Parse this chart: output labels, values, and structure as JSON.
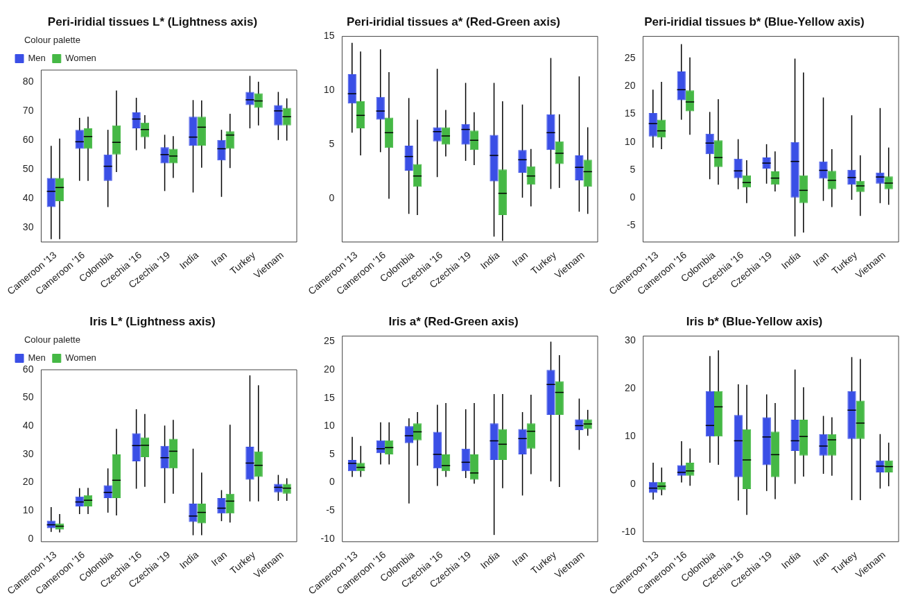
{
  "chart_data": [
    {
      "type": "box",
      "title": "Peri-iridial tissues L* (Lightness axis)",
      "categories": [
        "Cameroon '13",
        "Cameroon '16",
        "Colombia",
        "Czechia '16",
        "Czechia '19",
        "India",
        "Iran",
        "Turkey",
        "Vietnam"
      ],
      "ylim": [
        25,
        84
      ],
      "yticks": [
        30,
        40,
        50,
        60,
        70,
        80
      ],
      "grid": false,
      "legend": "top left",
      "legend_title": "Colour palette",
      "series": [
        {
          "name": "Men",
          "color": "#3a4fe6",
          "boxes": [
            {
              "low": 26,
              "q1": 37,
              "median": 42.4,
              "q3": 47,
              "high": 58
            },
            {
              "low": 46,
              "q1": 57,
              "median": 59.4,
              "q3": 63.5,
              "high": 67.6
            },
            {
              "low": 37,
              "q1": 46,
              "median": 51,
              "q3": 55,
              "high": 63.5
            },
            {
              "low": 56.5,
              "q1": 64,
              "median": 67.2,
              "q3": 69.5,
              "high": 74.5
            },
            {
              "low": 42.5,
              "q1": 52,
              "median": 55,
              "q3": 57.5,
              "high": 61.8
            },
            {
              "low": 42,
              "q1": 58,
              "median": 61,
              "q3": 68,
              "high": 73.7
            },
            {
              "low": 40.5,
              "q1": 53,
              "median": 57,
              "q3": 60,
              "high": 63.5
            },
            {
              "low": 64,
              "q1": 72,
              "median": 73.8,
              "q3": 76.5,
              "high": 82
            },
            {
              "low": 60,
              "q1": 65,
              "median": 70,
              "q3": 72,
              "high": 76.5
            }
          ]
        },
        {
          "name": "Women",
          "color": "#45b845",
          "boxes": [
            {
              "low": 26,
              "q1": 39,
              "median": 43.7,
              "q3": 47,
              "high": 60.5
            },
            {
              "low": 46,
              "q1": 57,
              "median": 61.2,
              "q3": 64,
              "high": 68
            },
            {
              "low": 49,
              "q1": 55,
              "median": 59.2,
              "q3": 65,
              "high": 77
            },
            {
              "low": 57,
              "q1": 61,
              "median": 63.6,
              "q3": 66,
              "high": 68.5
            },
            {
              "low": 47,
              "q1": 52,
              "median": 54.5,
              "q3": 57,
              "high": 61.3
            },
            {
              "low": 50.5,
              "q1": 58,
              "median": 64.4,
              "q3": 68,
              "high": 73.6
            },
            {
              "low": 50.4,
              "q1": 57,
              "median": 61.7,
              "q3": 63,
              "high": 69
            },
            {
              "low": 65,
              "q1": 71,
              "median": 73.4,
              "q3": 76,
              "high": 80
            },
            {
              "low": 59.8,
              "q1": 65,
              "median": 68,
              "q3": 71,
              "high": 74.3
            }
          ]
        }
      ]
    },
    {
      "type": "box",
      "title": "Peri-iridial tissues a* (Red-Green axis)",
      "categories": [
        "Cameroon '13",
        "Cameroon '16",
        "Colombia",
        "Czechia '16",
        "Czechia '19",
        "India",
        "Iran",
        "Turkey",
        "Vietnam"
      ],
      "ylim": [
        -4,
        15
      ],
      "yticks": [
        0,
        5,
        10,
        15
      ],
      "grid": false,
      "series": [
        {
          "color": "#3a4fe6",
          "boxes": [
            {
              "low": 6.1,
              "q1": 8.8,
              "median": 9.7,
              "q3": 11.5,
              "high": 14.4
            },
            {
              "low": 4.3,
              "q1": 7.3,
              "median": 8.1,
              "q3": 9.4,
              "high": 13.8
            },
            {
              "low": -1.4,
              "q1": 2.6,
              "median": 3.9,
              "q3": 4.9,
              "high": 9.3
            },
            {
              "low": 2,
              "q1": 5.3,
              "median": 6.2,
              "q3": 6.6,
              "high": 12
            },
            {
              "low": 3.5,
              "q1": 5,
              "median": 6.4,
              "q3": 6.9,
              "high": 10.7
            },
            {
              "low": -3.5,
              "q1": 1.6,
              "median": 4,
              "q3": 5.9,
              "high": 10.7
            },
            {
              "low": 0.1,
              "q1": 2.4,
              "median": 3.6,
              "q3": 4.5,
              "high": 8.7
            },
            {
              "low": 0.9,
              "q1": 4.5,
              "median": 6.1,
              "q3": 7.8,
              "high": 13
            },
            {
              "low": -1.2,
              "q1": 1.7,
              "median": 2.9,
              "q3": 4,
              "high": 11.3
            }
          ]
        },
        {
          "color": "#45b845",
          "boxes": [
            {
              "low": 4,
              "q1": 6.5,
              "median": 7.7,
              "q3": 9,
              "high": 13.6
            },
            {
              "low": 0,
              "q1": 4.7,
              "median": 6.1,
              "q3": 7.5,
              "high": 11.7
            },
            {
              "low": -1.5,
              "q1": 1.1,
              "median": 2.1,
              "q3": 3.2,
              "high": 7.3
            },
            {
              "low": 3.9,
              "q1": 5,
              "median": 5.8,
              "q3": 6.6,
              "high": 8.2
            },
            {
              "low": 3.1,
              "q1": 4.5,
              "median": 5.4,
              "q3": 6.3,
              "high": 8
            },
            {
              "low": -3.9,
              "q1": -1.5,
              "median": 0.5,
              "q3": 2.7,
              "high": 9
            },
            {
              "low": -0.7,
              "q1": 1.3,
              "median": 2.1,
              "q3": 3,
              "high": 4.6
            },
            {
              "low": 1,
              "q1": 3.2,
              "median": 4.2,
              "q3": 5.3,
              "high": 7.8
            },
            {
              "low": -1.4,
              "q1": 1.1,
              "median": 2.5,
              "q3": 3.6,
              "high": 6.6
            }
          ]
        }
      ]
    },
    {
      "type": "box",
      "title": "Peri-iridial tissues b* (Blue-Yellow axis)",
      "categories": [
        "Cameroon '13",
        "Cameroon '16",
        "Colombia",
        "Czechia '16",
        "Czechia '19",
        "India",
        "Iran",
        "Turkey",
        "Vietnam"
      ],
      "ylim": [
        -8,
        29
      ],
      "yticks": [
        -5,
        0,
        5,
        10,
        15,
        20,
        25
      ],
      "grid": false,
      "series": [
        {
          "color": "#3a4fe6",
          "boxes": [
            {
              "low": 9,
              "q1": 11,
              "median": 13.3,
              "q3": 15.2,
              "high": 19.4
            },
            {
              "low": 14,
              "q1": 17.5,
              "median": 19.4,
              "q3": 22.7,
              "high": 27.6
            },
            {
              "low": 3.3,
              "q1": 7.8,
              "median": 9.8,
              "q3": 11.5,
              "high": 15.4
            },
            {
              "low": 1.5,
              "q1": 3.5,
              "median": 4.8,
              "q3": 7,
              "high": 10.5
            },
            {
              "low": 2.5,
              "q1": 5.2,
              "median": 6.2,
              "q3": 7.2,
              "high": 9.6
            },
            {
              "low": -7,
              "q1": 0,
              "median": 6.5,
              "q3": 10,
              "high": 25
            },
            {
              "low": -0.6,
              "q1": 3.4,
              "median": 4.9,
              "q3": 6.5,
              "high": 18
            },
            {
              "low": -0.4,
              "q1": 2.3,
              "median": 3.6,
              "q3": 5,
              "high": 14.8
            },
            {
              "low": -1,
              "q1": 2.5,
              "median": 3.7,
              "q3": 4.5,
              "high": 16.1
            }
          ]
        },
        {
          "color": "#45b845",
          "boxes": [
            {
              "low": 8.7,
              "q1": 10.8,
              "median": 12,
              "q3": 14,
              "high": 20.8
            },
            {
              "low": 11.3,
              "q1": 15.5,
              "median": 17.2,
              "q3": 19.3,
              "high": 25.2
            },
            {
              "low": 2.3,
              "q1": 5.5,
              "median": 7.2,
              "q3": 10.3,
              "high": 17.7
            },
            {
              "low": -1,
              "q1": 1.8,
              "median": 2.7,
              "q3": 4,
              "high": 6.7
            },
            {
              "low": 1.1,
              "q1": 2.3,
              "median": 3.5,
              "q3": 4.7,
              "high": 8.3
            },
            {
              "low": -6.3,
              "q1": -1,
              "median": 1.3,
              "q3": 4,
              "high": 22.5
            },
            {
              "low": -1.7,
              "q1": 1.5,
              "median": 3.1,
              "q3": 4.8,
              "high": 8.7
            },
            {
              "low": -3.3,
              "q1": 1,
              "median": 2.1,
              "q3": 3,
              "high": 7.6
            },
            {
              "low": -1.3,
              "q1": 1.5,
              "median": 2.6,
              "q3": 3.8,
              "high": 9
            }
          ]
        }
      ]
    },
    {
      "type": "box",
      "title": "Iris L* (Lightness axis)",
      "categories": [
        "Cameroon '13",
        "Cameroon '16",
        "Colombia",
        "Czechia '16",
        "Czechia '19",
        "India",
        "Iran",
        "Turkey",
        "Vietnam"
      ],
      "ylim": [
        -1,
        60
      ],
      "yticks": [
        0,
        10,
        20,
        30,
        40,
        50,
        60
      ],
      "grid": false,
      "legend": "top left",
      "legend_title": "Colour palette",
      "series": [
        {
          "name": "Men",
          "color": "#3a4fe6",
          "boxes": [
            {
              "low": 2.5,
              "q1": 3.8,
              "median": 5,
              "q3": 6.5,
              "high": 11.3
            },
            {
              "low": 8.8,
              "q1": 11.5,
              "median": 13.1,
              "q3": 15,
              "high": 18
            },
            {
              "low": 9.3,
              "q1": 14.5,
              "median": 16.5,
              "q3": 19,
              "high": 25
            },
            {
              "low": 17.8,
              "q1": 27.5,
              "median": 33.1,
              "q3": 37.5,
              "high": 46
            },
            {
              "low": 12.7,
              "q1": 25,
              "median": 28.8,
              "q3": 33,
              "high": 40.2
            },
            {
              "low": 1.3,
              "q1": 6,
              "median": 8.1,
              "q3": 12.5,
              "high": 32
            },
            {
              "low": 6.3,
              "q1": 9,
              "median": 10.9,
              "q3": 14.5,
              "high": 17.3
            },
            {
              "low": 13.3,
              "q1": 21,
              "median": 26.9,
              "q3": 32.7,
              "high": 58
            },
            {
              "low": 13.5,
              "q1": 16.5,
              "median": 18.3,
              "q3": 19.5,
              "high": 22.7
            }
          ]
        },
        {
          "name": "Women",
          "color": "#45b845",
          "boxes": [
            {
              "low": 2.3,
              "q1": 3.3,
              "median": 4.5,
              "q3": 5.5,
              "high": 8.8
            },
            {
              "low": 8.8,
              "q1": 11.5,
              "median": 13.7,
              "q3": 15.5,
              "high": 18.1
            },
            {
              "low": 8.3,
              "q1": 14.5,
              "median": 20.8,
              "q3": 30,
              "high": 39
            },
            {
              "low": 18.5,
              "q1": 29,
              "median": 33.2,
              "q3": 36,
              "high": 44.3
            },
            {
              "low": 16,
              "q1": 25,
              "median": 31.1,
              "q3": 35.5,
              "high": 42.2
            },
            {
              "low": 1.3,
              "q1": 5.5,
              "median": 9.4,
              "q3": 12.5,
              "high": 23.5
            },
            {
              "low": 5.8,
              "q1": 9,
              "median": 13.4,
              "q3": 16,
              "high": 40.5
            },
            {
              "low": 13.3,
              "q1": 22,
              "median": 26.1,
              "q3": 31,
              "high": 54.5
            },
            {
              "low": 13.5,
              "q1": 16,
              "median": 18,
              "q3": 19.5,
              "high": 21.5
            }
          ]
        }
      ]
    },
    {
      "type": "box",
      "title": "Iris a* (Red-Green axis)",
      "categories": [
        "Cameroon '13",
        "Cameroon '16",
        "Colombia",
        "Czechia '16",
        "Czechia '19",
        "India",
        "Iran",
        "Turkey",
        "Vietnam"
      ],
      "ylim": [
        -10.5,
        26
      ],
      "yticks": [
        -10,
        -5,
        0,
        5,
        10,
        15,
        20,
        25
      ],
      "grid": false,
      "series": [
        {
          "color": "#3a4fe6",
          "boxes": [
            {
              "low": 1,
              "q1": 2,
              "median": 3.4,
              "q3": 4,
              "high": 8.1
            },
            {
              "low": 3.2,
              "q1": 5.2,
              "median": 6,
              "q3": 7.5,
              "high": 10.7
            },
            {
              "low": -3.7,
              "q1": 7,
              "median": 8.3,
              "q3": 10,
              "high": 11.4
            },
            {
              "low": -0.6,
              "q1": 2.5,
              "median": 5,
              "q3": 9,
              "high": 13.8
            },
            {
              "low": 0.8,
              "q1": 2,
              "median": 3.6,
              "q3": 6,
              "high": 13
            },
            {
              "low": -9.3,
              "q1": 4,
              "median": 7.4,
              "q3": 10.5,
              "high": 15.7
            },
            {
              "low": -2.3,
              "q1": 5,
              "median": 7.8,
              "q3": 9.5,
              "high": 12.5
            },
            {
              "low": 0.2,
              "q1": 12,
              "median": 17.4,
              "q3": 20,
              "high": 25
            },
            {
              "low": 5.8,
              "q1": 9.3,
              "median": 10.1,
              "q3": 11.2,
              "high": 14.9
            }
          ]
        },
        {
          "color": "#45b845",
          "boxes": [
            {
              "low": 1,
              "q1": 2,
              "median": 2.7,
              "q3": 3.5,
              "high": 6.5
            },
            {
              "low": 3.2,
              "q1": 5,
              "median": 6.2,
              "q3": 7.5,
              "high": 10.7
            },
            {
              "low": 3,
              "q1": 7.5,
              "median": 9,
              "q3": 10.5,
              "high": 12.5
            },
            {
              "low": 1,
              "q1": 2,
              "median": 3,
              "q3": 5,
              "high": 14.1
            },
            {
              "low": -0.2,
              "q1": 0.5,
              "median": 1.7,
              "q3": 5,
              "high": 14.1
            },
            {
              "low": -1,
              "q1": 4,
              "median": 6.8,
              "q3": 9.5,
              "high": 15.7
            },
            {
              "low": 1.5,
              "q1": 6,
              "median": 9.1,
              "q3": 10.5,
              "high": 15.6
            },
            {
              "low": -0.8,
              "q1": 12,
              "median": 16,
              "q3": 18,
              "high": 22.6
            },
            {
              "low": 8.3,
              "q1": 9.5,
              "median": 10.4,
              "q3": 11.2,
              "high": 12.9
            }
          ]
        }
      ]
    },
    {
      "type": "box",
      "title": "Iris b* (Blue-Yellow axis)",
      "categories": [
        "Cameroon '13",
        "Cameroon '16",
        "Colombia",
        "Czechia '16",
        "Czechia '19",
        "India",
        "Iran",
        "Turkey",
        "Vietnam"
      ],
      "ylim": [
        -12,
        31
      ],
      "yticks": [
        -10,
        0,
        10,
        20,
        30
      ],
      "grid": false,
      "series": [
        {
          "color": "#3a4fe6",
          "boxes": [
            {
              "low": -3.2,
              "q1": -1.8,
              "median": -0.8,
              "q3": 0.5,
              "high": 4.5
            },
            {
              "low": 0.4,
              "q1": 1.8,
              "median": 2.5,
              "q3": 4,
              "high": 9
            },
            {
              "low": 4.5,
              "q1": 10,
              "median": 12.3,
              "q3": 19.5,
              "high": 26.8
            },
            {
              "low": -3.4,
              "q1": 1.5,
              "median": 9.1,
              "q3": 14.5,
              "high": 20.9
            },
            {
              "low": -1.4,
              "q1": 4,
              "median": 9.9,
              "q3": 14,
              "high": 18.8
            },
            {
              "low": 0.1,
              "q1": 7,
              "median": 9.1,
              "q3": 13.5,
              "high": 24
            },
            {
              "low": 2.2,
              "q1": 6,
              "median": 8,
              "q3": 10.5,
              "high": 14.3
            },
            {
              "low": -3.3,
              "q1": 9.5,
              "median": 15.5,
              "q3": 19.5,
              "high": 26.6
            },
            {
              "low": -0.9,
              "q1": 2.5,
              "median": 3.8,
              "q3": 5,
              "high": 10.5
            }
          ]
        },
        {
          "color": "#45b845",
          "boxes": [
            {
              "low": -2.3,
              "q1": -1.2,
              "median": -0.4,
              "q3": 0.5,
              "high": 3.5
            },
            {
              "low": -0.3,
              "q1": 1.8,
              "median": 2.8,
              "q3": 4.5,
              "high": 7.5
            },
            {
              "low": 4.1,
              "q1": 10,
              "median": 16.2,
              "q3": 19.5,
              "high": 28
            },
            {
              "low": -6.4,
              "q1": -1,
              "median": 5.1,
              "q3": 11.5,
              "high": 20.8
            },
            {
              "low": -3.1,
              "q1": 1.5,
              "median": 6.2,
              "q3": 11,
              "high": 17
            },
            {
              "low": 1.6,
              "q1": 6,
              "median": 10,
              "q3": 13.5,
              "high": 20.3
            },
            {
              "low": 1.8,
              "q1": 6,
              "median": 9.3,
              "q3": 10.5,
              "high": 14
            },
            {
              "low": -3.3,
              "q1": 9.5,
              "median": 12.8,
              "q3": 17.5,
              "high": 26.2
            },
            {
              "low": -0.4,
              "q1": 2.5,
              "median": 3.7,
              "q3": 5,
              "high": 8.7
            }
          ]
        }
      ]
    }
  ]
}
